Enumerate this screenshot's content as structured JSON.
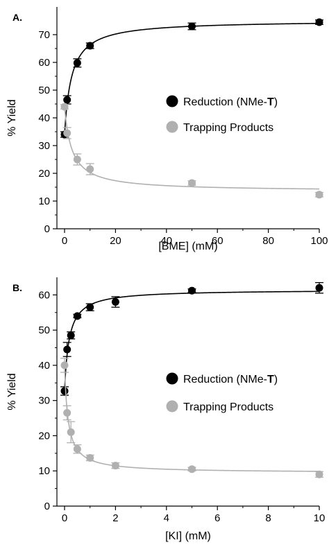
{
  "chart_data": [
    {
      "type": "scatter",
      "panel_label": "A.",
      "xlabel": "[BME]  (mM)",
      "ylabel": "% Yield",
      "xlim": [
        -3,
        100
      ],
      "ylim": [
        0,
        80
      ],
      "x_ticks": [
        0,
        20,
        40,
        60,
        80,
        100
      ],
      "y_ticks": [
        0,
        10,
        20,
        30,
        40,
        50,
        60,
        70
      ],
      "legend_position": "center-right",
      "series": [
        {
          "name": "Reduction (NMe-T)",
          "name_prefix": "Reduction (NMe-",
          "name_bold": "T",
          "name_suffix": ")",
          "color": "#000000",
          "points": [
            {
              "x": 0,
              "y": 34,
              "err": 1.0
            },
            {
              "x": 1,
              "y": 46.5,
              "err": 1.5
            },
            {
              "x": 5,
              "y": 59.8,
              "err": 1.5
            },
            {
              "x": 10,
              "y": 66,
              "err": 1.0
            },
            {
              "x": 50,
              "y": 73,
              "err": 1.2
            },
            {
              "x": 100,
              "y": 74.5,
              "err": 0.8
            }
          ]
        },
        {
          "name": "Trapping Products",
          "color": "#b0b0b0",
          "points": [
            {
              "x": 0,
              "y": 44,
              "err": 0.8
            },
            {
              "x": 1,
              "y": 34.5,
              "err": 2.0
            },
            {
              "x": 5,
              "y": 25,
              "err": 2.0
            },
            {
              "x": 10,
              "y": 21.5,
              "err": 2.0
            },
            {
              "x": 50,
              "y": 16.5,
              "err": 0.8
            },
            {
              "x": 100,
              "y": 12.3,
              "err": 0.8
            }
          ]
        }
      ]
    },
    {
      "type": "scatter",
      "panel_label": "B.",
      "xlabel": "[KI]  (mM)",
      "ylabel": "% Yield",
      "xlim": [
        -0.3,
        10
      ],
      "ylim": [
        0,
        65
      ],
      "x_ticks": [
        0,
        2,
        4,
        6,
        8,
        10
      ],
      "y_ticks": [
        0,
        10,
        20,
        30,
        40,
        50,
        60
      ],
      "legend_position": "center-right",
      "series": [
        {
          "name": "Reduction (NMe-T)",
          "name_prefix": "Reduction (NMe-",
          "name_bold": "T",
          "name_suffix": ")",
          "color": "#000000",
          "points": [
            {
              "x": 0,
              "y": 32.7,
              "err": 1.2
            },
            {
              "x": 0.1,
              "y": 44.5,
              "err": 2.0
            },
            {
              "x": 0.25,
              "y": 48.5,
              "err": 1.0
            },
            {
              "x": 0.5,
              "y": 54,
              "err": 0.5
            },
            {
              "x": 1,
              "y": 56.5,
              "err": 1.0
            },
            {
              "x": 2,
              "y": 58,
              "err": 1.5
            },
            {
              "x": 5,
              "y": 61.2,
              "err": 0.5
            },
            {
              "x": 10,
              "y": 62,
              "err": 1.5
            }
          ]
        },
        {
          "name": "Trapping Products",
          "color": "#b0b0b0",
          "points": [
            {
              "x": 0,
              "y": 40,
              "err": 2.0
            },
            {
              "x": 0.1,
              "y": 26.5,
              "err": 2.0
            },
            {
              "x": 0.25,
              "y": 21,
              "err": 3.0
            },
            {
              "x": 0.5,
              "y": 16.2,
              "err": 1.2
            },
            {
              "x": 1,
              "y": 13.7,
              "err": 0.8
            },
            {
              "x": 2,
              "y": 11.5,
              "err": 0.8
            },
            {
              "x": 5,
              "y": 10.5,
              "err": 0.5
            },
            {
              "x": 10,
              "y": 9,
              "err": 0.8
            }
          ]
        }
      ]
    }
  ]
}
